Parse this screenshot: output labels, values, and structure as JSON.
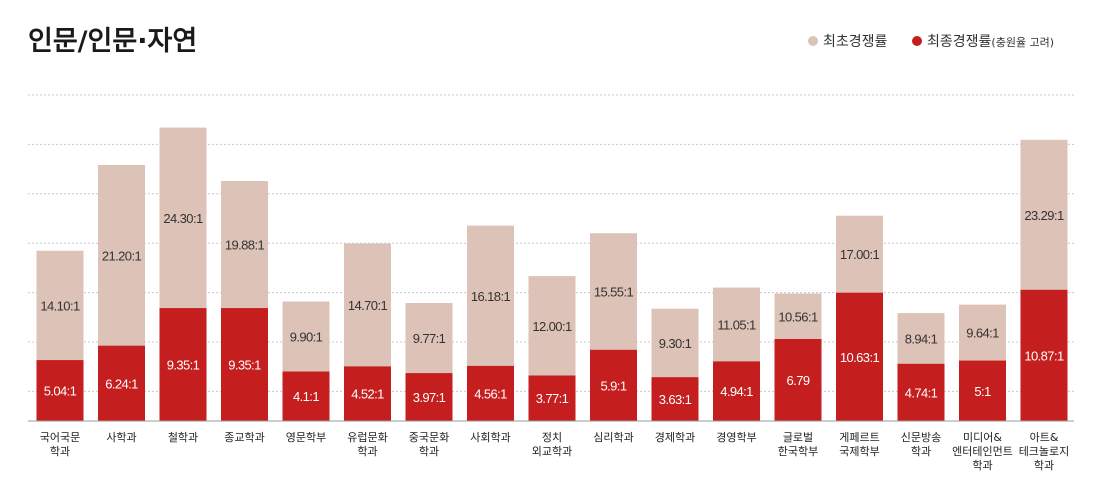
{
  "title": "인문/인문·자연",
  "legend": {
    "position": "top-right",
    "items": [
      {
        "name": "최초경쟁률",
        "note": ""
      },
      {
        "name": "최종경쟁률",
        "note": "(충원율 고려)"
      }
    ]
  },
  "colors": {
    "initial": "#ddc2b8",
    "final": "#c41e1e",
    "title": "#1a1a1a"
  },
  "chart_data": {
    "type": "bar",
    "stacked": "overlay",
    "grid": true,
    "ylim": [
      0,
      27
    ],
    "categories": [
      [
        "국어국문",
        "학과"
      ],
      [
        "사학과"
      ],
      [
        "철학과"
      ],
      [
        "종교학과"
      ],
      [
        "영문학부"
      ],
      [
        "유럽문화",
        "학과"
      ],
      [
        "중국문화",
        "학과"
      ],
      [
        "사회학과"
      ],
      [
        "정치",
        "외교학과"
      ],
      [
        "심리학과"
      ],
      [
        "경제학과"
      ],
      [
        "경영학부"
      ],
      [
        "글로벌",
        "한국학부"
      ],
      [
        "게페르트",
        "국제학부"
      ],
      [
        "신문방송",
        "학과"
      ],
      [
        "미디어&",
        "엔터테인먼트",
        "학과"
      ],
      [
        "아트&",
        "테크놀로지",
        "학과"
      ]
    ],
    "series": [
      {
        "name": "최초경쟁률",
        "values": [
          14.1,
          21.2,
          24.3,
          19.88,
          9.9,
          14.7,
          9.77,
          16.18,
          12.0,
          15.55,
          9.3,
          11.05,
          10.56,
          17.0,
          8.94,
          9.64,
          23.29
        ],
        "labels": [
          "14.10:1",
          "21.20:1",
          "24.30:1",
          "19.88:1",
          "9.90:1",
          "14.70:1",
          "9.77:1",
          "16.18:1",
          "12.00:1",
          "15.55:1",
          "9.30:1",
          "11.05:1",
          "10.56:1",
          "17.00:1",
          "8.94:1",
          "9.64:1",
          "23.29:1"
        ]
      },
      {
        "name": "최종경쟁률",
        "values": [
          5.04,
          6.24,
          9.35,
          9.35,
          4.1,
          4.52,
          3.97,
          4.56,
          3.77,
          5.9,
          3.63,
          4.94,
          6.79,
          10.63,
          4.74,
          5,
          10.87
        ],
        "labels": [
          "5.04:1",
          "6.24:1",
          "9.35:1",
          "9.35:1",
          "4.1:1",
          "4.52:1",
          "3.97:1",
          "4.56:1",
          "3.77:1",
          "5.9:1",
          "3.63:1",
          "4.94:1",
          "6.79",
          "10.63:1",
          "4.74:1",
          "5:1",
          "10.87:1"
        ]
      }
    ]
  }
}
